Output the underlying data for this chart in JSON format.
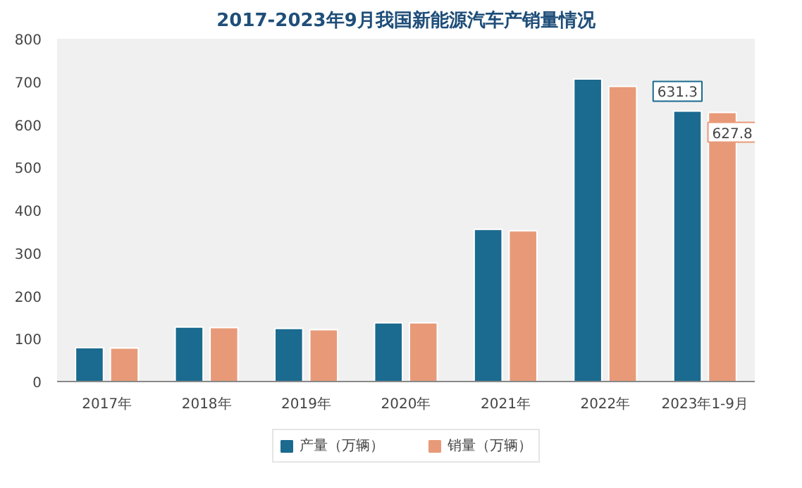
{
  "chart_data": {
    "type": "bar",
    "title": "2017-2023年9月我国新能源汽车产销量情况",
    "categories": [
      "2017年",
      "2018年",
      "2019年",
      "2020年",
      "2021年",
      "2022年",
      "2023年1-9月"
    ],
    "series": [
      {
        "name": "产量（万辆）",
        "color": "#1b6a8f",
        "values": [
          79,
          127,
          124,
          137,
          355,
          706,
          631.3
        ],
        "value_labels": [
          null,
          null,
          null,
          null,
          null,
          null,
          "631.3"
        ]
      },
      {
        "name": "销量（万辆）",
        "color": "#e89a78",
        "values": [
          78,
          126,
          121,
          137,
          352,
          689,
          627.8
        ],
        "value_labels": [
          null,
          null,
          null,
          null,
          null,
          null,
          "627.8"
        ]
      }
    ],
    "ylim": [
      0,
      800
    ],
    "yticks": [
      0,
      100,
      200,
      300,
      400,
      500,
      600,
      700,
      800
    ],
    "grid": false,
    "legend": "bottom"
  }
}
